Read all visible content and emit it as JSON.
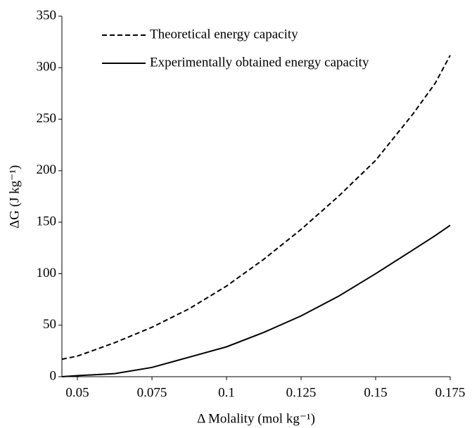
{
  "chart_data": {
    "type": "line",
    "x_label": "Δ Molality (mol kg⁻¹)",
    "y_label": "ΔG (J kg⁻¹)",
    "x": [
      0.0448,
      0.05,
      0.0625,
      0.075,
      0.0875,
      0.1,
      0.1125,
      0.125,
      0.1375,
      0.15,
      0.1625,
      0.17,
      0.175
    ],
    "series": [
      {
        "name": "Theoretical energy capacity",
        "color": "#000000",
        "line_style": "dashed",
        "values": [
          17,
          20,
          33,
          48,
          66,
          88,
          114,
          143,
          175,
          210,
          255,
          285,
          312
        ]
      },
      {
        "name": "Experimentally obtained energy capacity",
        "color": "#000000",
        "line_style": "solid",
        "values": [
          0,
          1,
          3,
          9,
          19,
          29,
          43,
          59,
          78,
          100,
          123,
          137,
          147
        ]
      }
    ],
    "xlim": [
      0.0448,
      0.175
    ],
    "xticks": [
      0.05,
      0.075,
      0.1,
      0.125,
      0.15,
      0.175
    ],
    "ylim": [
      0,
      350
    ],
    "yticks": [
      0,
      50,
      100,
      150,
      200,
      250,
      300,
      350
    ],
    "grid": false,
    "legend": "upper left"
  }
}
